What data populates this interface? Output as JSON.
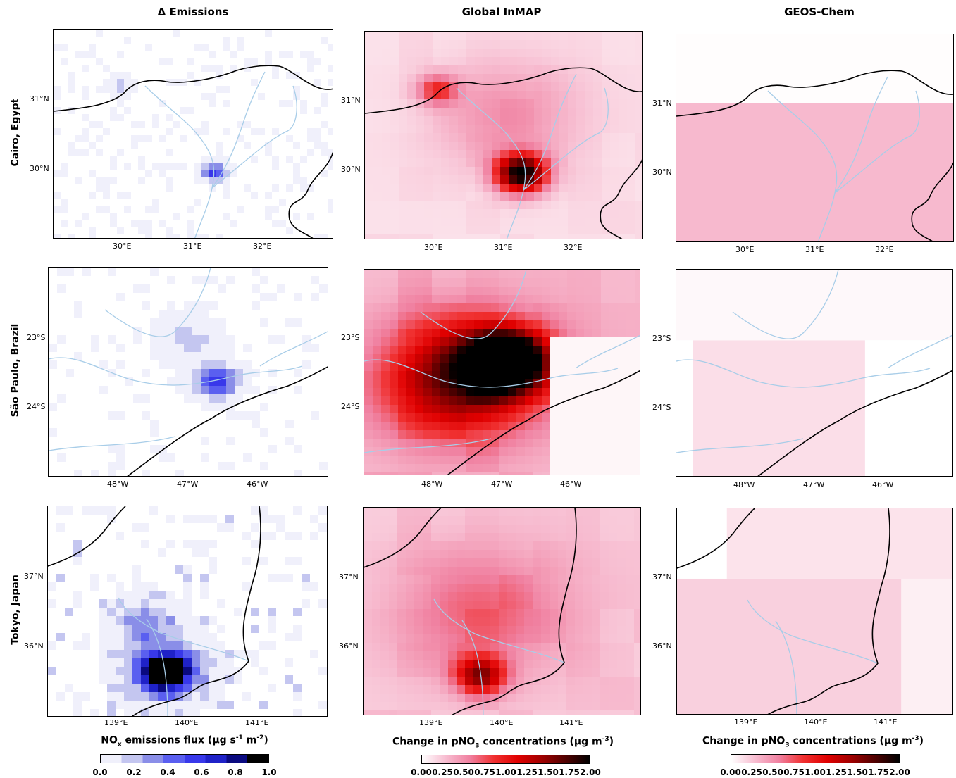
{
  "column_titles": [
    "Δ Emissions",
    "Global InMAP",
    "GEOS-Chem"
  ],
  "row_titles": [
    "Cairo, Egypt",
    "São Paulo, Brazil",
    "Tokyo, Japan"
  ],
  "colorbars": [
    {
      "title_parts": [
        "NO",
        "x",
        " emissions flux (µg s",
        "-1",
        " m",
        "-2",
        ")"
      ],
      "ticks": [
        "0.0",
        "0.2",
        "0.4",
        "0.6",
        "0.8",
        "1.0"
      ],
      "colors": [
        "#f0f0fb",
        "#c4c6f0",
        "#8a8ee8",
        "#5a5ff0",
        "#3838ea",
        "#1f22c8",
        "#0a0a80",
        "#000000"
      ]
    },
    {
      "title_parts": [
        "Change in pNO",
        "3",
        " concentrations (µg m",
        "-3",
        ")"
      ],
      "ticks": [
        "0.00",
        "0.25",
        "0.50",
        "0.75",
        "1.00",
        "1.25",
        "1.50",
        "1.75",
        "2.00"
      ],
      "colors": [
        "#ffffff",
        "#f7bcd0",
        "#f080a0",
        "#f03030",
        "#e00000",
        "#a00000",
        "#500000",
        "#000000"
      ]
    },
    {
      "title_parts": [
        "Change in pNO",
        "3",
        " concentrations (µg m",
        "-3",
        ")"
      ],
      "ticks": [
        "0.00",
        "0.25",
        "0.50",
        "0.75",
        "1.00",
        "1.25",
        "1.50",
        "1.75",
        "2.00"
      ],
      "colors": [
        "#ffffff",
        "#f7bcd0",
        "#f080a0",
        "#f03030",
        "#e00000",
        "#a00000",
        "#500000",
        "#000000"
      ]
    }
  ],
  "chart_data": [
    {
      "type": "heatmap",
      "city": "Cairo, Egypt",
      "model": "Δ Emissions",
      "x_ticks": [
        "30°E",
        "31°E",
        "32°E"
      ],
      "y_ticks": [
        "31°N",
        "30°N"
      ],
      "hotspots": [
        {
          "lon": 31.2,
          "lat": 30.0,
          "value": 0.5
        },
        {
          "lon": 30.0,
          "lat": 31.2,
          "value": 0.2
        }
      ]
    },
    {
      "type": "heatmap",
      "city": "Cairo, Egypt",
      "model": "Global InMAP",
      "x_ticks": [
        "30°E",
        "31°E",
        "32°E"
      ],
      "y_ticks": [
        "31°N",
        "30°N"
      ],
      "hotspots": [
        {
          "lon": 31.25,
          "lat": 29.9,
          "value": 2.0
        },
        {
          "lon": 29.95,
          "lat": 31.2,
          "value": 0.6
        }
      ],
      "background": 0.15
    },
    {
      "type": "heatmap",
      "city": "Cairo, Egypt",
      "model": "GEOS-Chem",
      "x_ticks": [
        "30°E",
        "31°E",
        "32°E"
      ],
      "y_ticks": [
        "31°N",
        "30°N"
      ],
      "background": 0.3
    },
    {
      "type": "heatmap",
      "city": "São Paulo, Brazil",
      "model": "Δ Emissions",
      "x_ticks": [
        "48°W",
        "47°W",
        "46°W"
      ],
      "y_ticks": [
        "23°S",
        "24°S"
      ],
      "hotspots": [
        {
          "lon": -46.6,
          "lat": -23.6,
          "value": 0.6
        }
      ]
    },
    {
      "type": "heatmap",
      "city": "São Paulo, Brazil",
      "model": "Global InMAP",
      "x_ticks": [
        "48°W",
        "47°W",
        "46°W"
      ],
      "y_ticks": [
        "23°S",
        "24°S"
      ],
      "hotspots": [
        {
          "lon": -46.8,
          "lat": -23.4,
          "value": 2.0
        }
      ],
      "background": 0.4
    },
    {
      "type": "heatmap",
      "city": "São Paulo, Brazil",
      "model": "GEOS-Chem",
      "x_ticks": [
        "48°W",
        "47°W",
        "46°W"
      ],
      "y_ticks": [
        "23°S",
        "24°S"
      ],
      "background": 0.15
    },
    {
      "type": "heatmap",
      "city": "Tokyo, Japan",
      "model": "Δ Emissions",
      "x_ticks": [
        "139°E",
        "140°E",
        "141°E"
      ],
      "y_ticks": [
        "37°N",
        "36°N"
      ],
      "hotspots": [
        {
          "lon": 139.7,
          "lat": 35.7,
          "value": 1.0
        }
      ]
    },
    {
      "type": "heatmap",
      "city": "Tokyo, Japan",
      "model": "Global InMAP",
      "x_ticks": [
        "139°E",
        "140°E",
        "141°E"
      ],
      "y_ticks": [
        "37°N",
        "36°N"
      ],
      "hotspots": [
        {
          "lon": 139.7,
          "lat": 35.7,
          "value": 1.0
        }
      ],
      "background": 0.3
    },
    {
      "type": "heatmap",
      "city": "Tokyo, Japan",
      "model": "GEOS-Chem",
      "x_ticks": [
        "139°E",
        "140°E",
        "141°E"
      ],
      "y_ticks": [
        "37°N",
        "36°N"
      ],
      "background": 0.2
    }
  ]
}
